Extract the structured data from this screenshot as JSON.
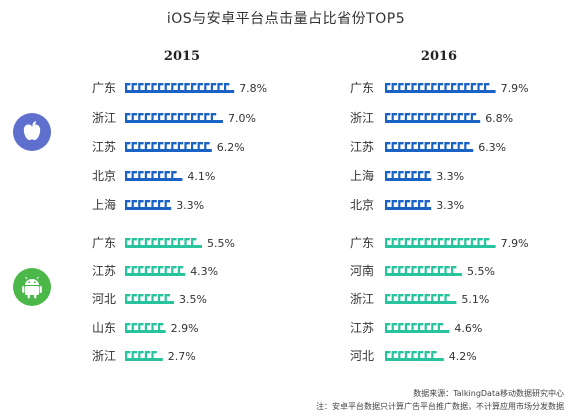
{
  "title": "iOS与安卓平台点击量占比省份TOP5",
  "colors": {
    "ios": "#1a62c4",
    "android": "#27c49e",
    "ios_icon_bg": "#5e6fcd",
    "android_icon_bg": "#4cb84a"
  },
  "icons": {
    "ios": "apple-logo-icon",
    "android": "android-robot-icon"
  },
  "source": "数据来源：TalkingData移动数据研究中心",
  "note": "注：安卓平台数据只计算广告平台推广数据，不计算应用市场分发数据",
  "chart_data": {
    "type": "bar",
    "years": [
      "2015",
      "2016"
    ],
    "groups": [
      {
        "platform": "iOS",
        "panels": [
          {
            "year": "2015",
            "categories": [
              "广东",
              "浙江",
              "江苏",
              "北京",
              "上海"
            ],
            "values": [
              7.8,
              7.0,
              6.2,
              4.1,
              3.3
            ],
            "labels": [
              "7.8%",
              "7.0%",
              "6.2%",
              "4.1%",
              "3.3%"
            ]
          },
          {
            "year": "2016",
            "categories": [
              "广东",
              "浙江",
              "江苏",
              "上海",
              "北京"
            ],
            "values": [
              7.9,
              6.8,
              6.3,
              3.3,
              3.3
            ],
            "labels": [
              "7.9%",
              "6.8%",
              "6.3%",
              "3.3%",
              "3.3%"
            ]
          }
        ]
      },
      {
        "platform": "Android",
        "panels": [
          {
            "year": "2015",
            "categories": [
              "广东",
              "江苏",
              "河北",
              "山东",
              "浙江"
            ],
            "values": [
              5.5,
              4.3,
              3.5,
              2.9,
              2.7
            ],
            "labels": [
              "5.5%",
              "4.3%",
              "3.5%",
              "2.9%",
              "2.7%"
            ]
          },
          {
            "year": "2016",
            "categories": [
              "广东",
              "河南",
              "浙江",
              "江苏",
              "河北"
            ],
            "values": [
              7.9,
              5.5,
              5.1,
              4.6,
              4.2
            ],
            "labels": [
              "7.9%",
              "5.5%",
              "5.1%",
              "4.6%",
              "4.2%"
            ]
          }
        ]
      }
    ]
  }
}
